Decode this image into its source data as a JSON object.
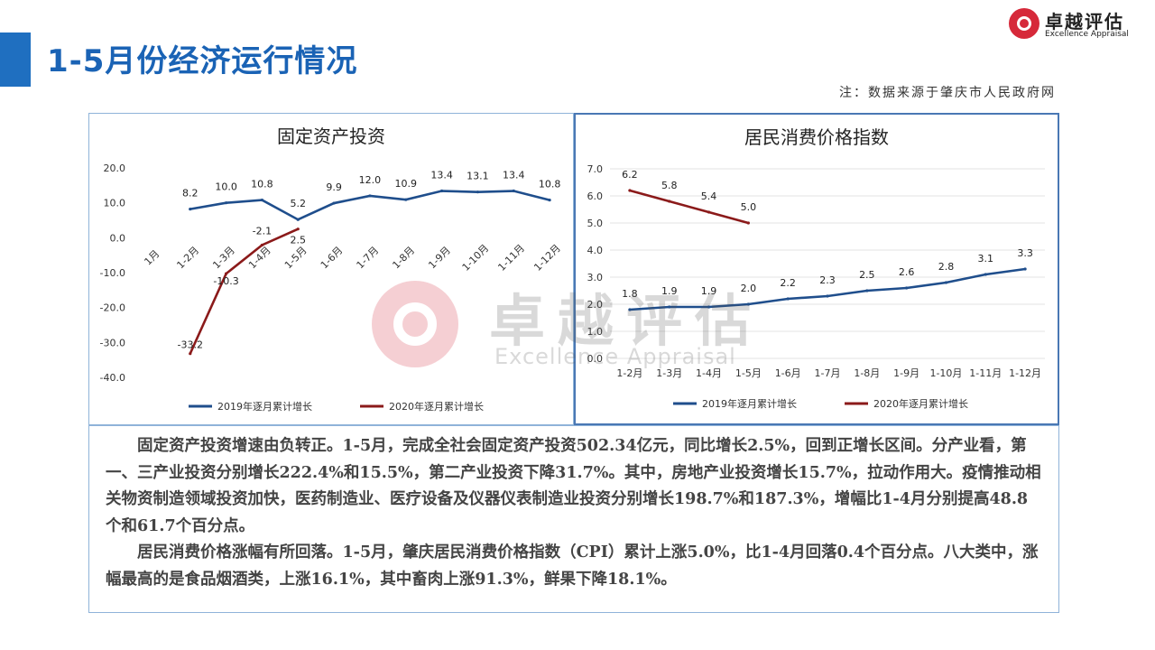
{
  "header": {
    "title": "1-5月份经济运行情况",
    "note": "注：数据来源于肇庆市人民政府网"
  },
  "logo": {
    "name_cn": "卓越评估",
    "name_en": "Excellence Appraisal"
  },
  "watermark": {
    "name_cn": "卓越评估",
    "name_en": "Excellence Appraisal"
  },
  "colors": {
    "accent": "#1f6fc0",
    "series_2019": "#1f4e8c",
    "series_2020": "#8b1a1a",
    "brand_red": "#d6293a"
  },
  "chart_data": [
    {
      "type": "line",
      "title": "固定资产投资",
      "categories": [
        "1月",
        "1-2月",
        "1-3月",
        "1-4月",
        "1-5月",
        "1-6月",
        "1-7月",
        "1-8月",
        "1-9月",
        "1-10月",
        "1-11月",
        "1-12月"
      ],
      "ylim": [
        -40,
        20
      ],
      "yticks": [
        "20.0",
        "10.0",
        "0.0",
        "-10.0",
        "-20.0",
        "-30.0",
        "-40.0"
      ],
      "legend_position": "bottom",
      "series": [
        {
          "name": "2019年逐月累计增长",
          "values": [
            null,
            8.2,
            10.0,
            10.8,
            5.2,
            9.9,
            12.0,
            10.9,
            13.4,
            13.1,
            13.4,
            10.8
          ],
          "labels": [
            null,
            "8.2",
            "10.0",
            "10.8",
            "5.2",
            "9.9",
            "12.0",
            "10.9",
            "13.4",
            "13.1",
            "13.4",
            "10.8"
          ]
        },
        {
          "name": "2020年逐月累计增长",
          "values": [
            null,
            -33.2,
            -10.3,
            -2.1,
            2.5,
            null,
            null,
            null,
            null,
            null,
            null,
            null
          ],
          "labels": [
            null,
            "-33.2",
            "-10.3",
            "-2.1",
            "2.5",
            null,
            null,
            null,
            null,
            null,
            null,
            null
          ]
        }
      ]
    },
    {
      "type": "line",
      "title": "居民消费价格指数",
      "categories": [
        "1-2月",
        "1-3月",
        "1-4月",
        "1-5月",
        "1-6月",
        "1-7月",
        "1-8月",
        "1-9月",
        "1-10月",
        "1-11月",
        "1-12月"
      ],
      "ylim": [
        0,
        7
      ],
      "yticks": [
        "7.0",
        "6.0",
        "5.0",
        "4.0",
        "3.0",
        "2.0",
        "1.0",
        "0.0"
      ],
      "legend_position": "bottom",
      "series": [
        {
          "name": "2019年逐月累计增长",
          "values": [
            1.8,
            1.9,
            1.9,
            2.0,
            2.2,
            2.3,
            2.5,
            2.6,
            2.8,
            3.1,
            3.3
          ],
          "labels": [
            "1.8",
            "1.9",
            "1.9",
            "2.0",
            "2.2",
            "2.3",
            "2.5",
            "2.6",
            "2.8",
            "3.1",
            "3.3"
          ]
        },
        {
          "name": "2020年逐月累计增长",
          "values": [
            6.2,
            5.8,
            5.4,
            5.0,
            null,
            null,
            null,
            null,
            null,
            null,
            null
          ],
          "labels": [
            "6.2",
            "5.8",
            "5.4",
            "5.0",
            null,
            null,
            null,
            null,
            null,
            null,
            null
          ]
        }
      ]
    }
  ],
  "body": {
    "para1": "固定资产投资增速由负转正。1-5月，完成全社会固定资产投资502.34亿元，同比增长2.5%，回到正增长区间。分产业看，第一、三产业投资分别增长222.4%和15.5%，第二产业投资下降31.7%。其中，房地产业投资增长15.7%，拉动作用大。疫情推动相关物资制造领域投资加快，医药制造业、医疗设备及仪器仪表制造业投资分别增长198.7%和187.3%，增幅比1-4月分别提高48.8个和61.7个百分点。",
    "para2": "居民消费价格涨幅有所回落。1-5月，肇庆居民消费价格指数（CPI）累计上涨5.0%，比1-4月回落0.4个百分点。八大类中，涨幅最高的是食品烟酒类，上涨16.1%，其中畜肉上涨91.3%，鲜果下降18.1%。"
  }
}
